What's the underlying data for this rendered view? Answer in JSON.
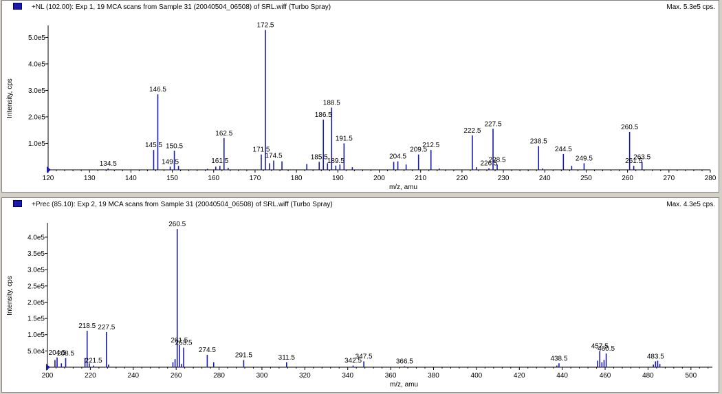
{
  "panels": [
    {
      "title": "+NL (102.00): Exp 1, 19 MCA scans from Sample 31 (20040504_06508) of SRL.wiff (Turbo Spray)",
      "max_label": "Max. 5.3e5 cps."
    },
    {
      "title": "+Prec (85.10): Exp 2, 19 MCA scans from Sample 31 (20040504_06508) of SRL.wiff (Turbo Spray)",
      "max_label": "Max. 4.3e5 cps."
    }
  ],
  "colors": {
    "peak": "#1a1aaa",
    "marker": "#1a1aaa",
    "axis": "#000000"
  },
  "chart_data": [
    {
      "type": "bar",
      "subtype": "mass-spectrum",
      "xlabel": "m/z, amu",
      "ylabel": "Intensity, cps",
      "xlim": [
        120,
        280
      ],
      "ylim": [
        0,
        540000
      ],
      "xticks": [
        120,
        130,
        140,
        150,
        160,
        170,
        180,
        190,
        200,
        210,
        220,
        230,
        240,
        250,
        260,
        270,
        280
      ],
      "yticks": [
        100000,
        200000,
        300000,
        400000,
        500000
      ],
      "ytick_labels": [
        "1.0e5",
        "2.0e5",
        "3.0e5",
        "4.0e5",
        "5.0e5"
      ],
      "peaks": [
        {
          "mz": 134.5,
          "intensity": 5000,
          "label": "134.5"
        },
        {
          "mz": 145.5,
          "intensity": 75000,
          "label": "145.5"
        },
        {
          "mz": 146.5,
          "intensity": 285000,
          "label": "146.5"
        },
        {
          "mz": 149.5,
          "intensity": 12000,
          "label": "149.5"
        },
        {
          "mz": 150.5,
          "intensity": 72000,
          "label": "150.5"
        },
        {
          "mz": 151.5,
          "intensity": 15000
        },
        {
          "mz": 158.5,
          "intensity": 4000
        },
        {
          "mz": 160.5,
          "intensity": 12000
        },
        {
          "mz": 161.5,
          "intensity": 15000,
          "label": "161.5"
        },
        {
          "mz": 162.5,
          "intensity": 120000,
          "label": "162.5"
        },
        {
          "mz": 163.5,
          "intensity": 8000
        },
        {
          "mz": 171.5,
          "intensity": 58000,
          "label": "171.5"
        },
        {
          "mz": 172.5,
          "intensity": 528000,
          "label": "172.5"
        },
        {
          "mz": 173.5,
          "intensity": 25000
        },
        {
          "mz": 174.5,
          "intensity": 35000,
          "label": "174.5"
        },
        {
          "mz": 176.5,
          "intensity": 32000
        },
        {
          "mz": 182.5,
          "intensity": 22000
        },
        {
          "mz": 185.5,
          "intensity": 30000,
          "label": "185.5"
        },
        {
          "mz": 186.5,
          "intensity": 190000,
          "label": "186.5"
        },
        {
          "mz": 187.5,
          "intensity": 25000
        },
        {
          "mz": 188.5,
          "intensity": 235000,
          "label": "188.5"
        },
        {
          "mz": 189.5,
          "intensity": 16000,
          "label": "189.5"
        },
        {
          "mz": 190.5,
          "intensity": 20000
        },
        {
          "mz": 191.5,
          "intensity": 100000,
          "label": "191.5"
        },
        {
          "mz": 193.5,
          "intensity": 10000
        },
        {
          "mz": 203.5,
          "intensity": 30000
        },
        {
          "mz": 204.5,
          "intensity": 32000,
          "label": "204.5"
        },
        {
          "mz": 206.5,
          "intensity": 20000
        },
        {
          "mz": 209.5,
          "intensity": 58000,
          "label": "209.5"
        },
        {
          "mz": 212.5,
          "intensity": 75000,
          "label": "212.5"
        },
        {
          "mz": 214.5,
          "intensity": 5000
        },
        {
          "mz": 222.5,
          "intensity": 130000,
          "label": "222.5"
        },
        {
          "mz": 223.5,
          "intensity": 10000
        },
        {
          "mz": 226.5,
          "intensity": 6000,
          "label": "226.5"
        },
        {
          "mz": 227.5,
          "intensity": 155000,
          "label": "227.5"
        },
        {
          "mz": 228.5,
          "intensity": 20000,
          "label": "228.5"
        },
        {
          "mz": 238.5,
          "intensity": 90000,
          "label": "238.5"
        },
        {
          "mz": 239.5,
          "intensity": 5000
        },
        {
          "mz": 244.5,
          "intensity": 60000,
          "label": "244.5"
        },
        {
          "mz": 246.5,
          "intensity": 15000
        },
        {
          "mz": 249.5,
          "intensity": 25000,
          "label": "249.5"
        },
        {
          "mz": 260.5,
          "intensity": 143000,
          "label": "260.5"
        },
        {
          "mz": 261.5,
          "intensity": 15000,
          "label": "261.5"
        },
        {
          "mz": 263.5,
          "intensity": 30000,
          "label": "263.5"
        }
      ]
    },
    {
      "type": "bar",
      "subtype": "mass-spectrum",
      "xlabel": "m/z, amu",
      "ylabel": "Intensity, cps",
      "xlim": [
        200,
        510
      ],
      "ylim": [
        0,
        440000
      ],
      "xticks": [
        200,
        220,
        240,
        260,
        280,
        300,
        320,
        340,
        360,
        380,
        400,
        420,
        440,
        460,
        480,
        500
      ],
      "yticks": [
        50000,
        100000,
        150000,
        200000,
        250000,
        300000,
        350000,
        400000
      ],
      "ytick_labels": [
        "5.0e4",
        "1.0e5",
        "1.5e5",
        "2.0e5",
        "2.5e5",
        "3.0e5",
        "3.5e5",
        "4.0e5"
      ],
      "peaks": [
        {
          "mz": 203.5,
          "intensity": 22000
        },
        {
          "mz": 204.5,
          "intensity": 30000,
          "label": "204.5"
        },
        {
          "mz": 206.5,
          "intensity": 12000
        },
        {
          "mz": 208.5,
          "intensity": 28000,
          "label": "208.5"
        },
        {
          "mz": 217.5,
          "intensity": 28000
        },
        {
          "mz": 218.5,
          "intensity": 112000,
          "label": "218.5"
        },
        {
          "mz": 219.5,
          "intensity": 12000
        },
        {
          "mz": 221.5,
          "intensity": 5000,
          "label": "221.5"
        },
        {
          "mz": 227.5,
          "intensity": 108000,
          "label": "227.5"
        },
        {
          "mz": 228.5,
          "intensity": 8000
        },
        {
          "mz": 258.5,
          "intensity": 15000
        },
        {
          "mz": 259.5,
          "intensity": 25000
        },
        {
          "mz": 260.5,
          "intensity": 425000,
          "label": "260.5"
        },
        {
          "mz": 261.5,
          "intensity": 68000,
          "label": "261.5"
        },
        {
          "mz": 262.5,
          "intensity": 10000
        },
        {
          "mz": 263.5,
          "intensity": 60000,
          "label": "263.5"
        },
        {
          "mz": 274.5,
          "intensity": 38000,
          "label": "274.5"
        },
        {
          "mz": 277.5,
          "intensity": 15000
        },
        {
          "mz": 291.5,
          "intensity": 22000,
          "label": "291.5"
        },
        {
          "mz": 311.5,
          "intensity": 15000,
          "label": "311.5"
        },
        {
          "mz": 342.5,
          "intensity": 5000,
          "label": "342.5"
        },
        {
          "mz": 347.5,
          "intensity": 18000,
          "label": "347.5"
        },
        {
          "mz": 366.5,
          "intensity": 3000,
          "label": "366.5"
        },
        {
          "mz": 437.5,
          "intensity": 5000
        },
        {
          "mz": 438.5,
          "intensity": 12000,
          "label": "438.5"
        },
        {
          "mz": 456.5,
          "intensity": 20000
        },
        {
          "mz": 457.5,
          "intensity": 50000,
          "label": "457.5"
        },
        {
          "mz": 458.5,
          "intensity": 15000
        },
        {
          "mz": 459.5,
          "intensity": 22000
        },
        {
          "mz": 460.5,
          "intensity": 42000,
          "label": "460.5"
        },
        {
          "mz": 482.5,
          "intensity": 8000
        },
        {
          "mz": 483.5,
          "intensity": 18000,
          "label": "483.5"
        },
        {
          "mz": 484.5,
          "intensity": 20000
        },
        {
          "mz": 485.5,
          "intensity": 10000
        }
      ]
    }
  ]
}
